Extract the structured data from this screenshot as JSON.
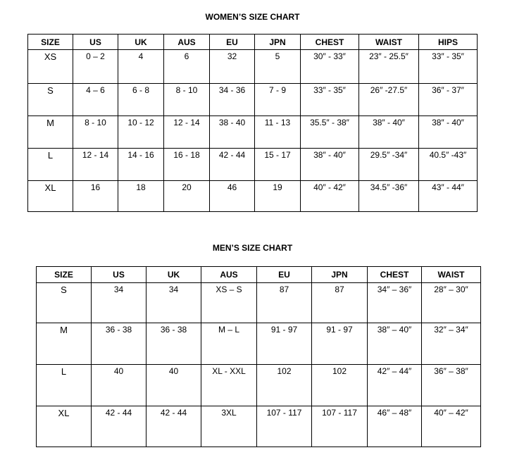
{
  "women": {
    "title": "WOMEN’S SIZE CHART",
    "headers": [
      "SIZE",
      "US",
      "UK",
      "AUS",
      "EU",
      "JPN",
      "CHEST",
      "WAIST",
      "HIPS"
    ],
    "rows": [
      [
        "XS",
        "0 – 2",
        "4",
        "6",
        "32",
        "5",
        "30″ - 33″",
        "23″ - 25.5″",
        "33″ - 35″"
      ],
      [
        "S",
        "4 – 6",
        "6 - 8",
        "8 - 10",
        "34 - 36",
        "7 - 9",
        "33″ - 35″",
        "26″ -27.5″",
        "36″ - 37″"
      ],
      [
        "M",
        "8 - 10",
        "10 - 12",
        "12 - 14",
        "38 - 40",
        "11 - 13",
        "35.5″ - 38″",
        "38″ - 40″",
        "38″ - 40″"
      ],
      [
        "L",
        "12 - 14",
        "14 - 16",
        "16 - 18",
        "42 - 44",
        "15 - 17",
        "38″ - 40″",
        "29.5″ -34″",
        "40.5″ -43″"
      ],
      [
        "XL",
        "16",
        "18",
        "20",
        "46",
        "19",
        "40″ - 42″",
        "34.5″ -36″",
        "43″ - 44″"
      ]
    ]
  },
  "men": {
    "title": "MEN’S SIZE CHART",
    "headers": [
      "SIZE",
      "US",
      "UK",
      "AUS",
      "EU",
      "JPN",
      "CHEST",
      "WAIST"
    ],
    "rows": [
      [
        "S",
        "34",
        "34",
        "XS – S",
        "87",
        "87",
        "34″ – 36″",
        "28″ – 30″"
      ],
      [
        "M",
        "36 - 38",
        "36 - 38",
        "M – L",
        "91 - 97",
        "91 - 97",
        "38″ – 40″",
        "32″ – 34″"
      ],
      [
        "L",
        "40",
        "40",
        "XL - XXL",
        "102",
        "102",
        "42″ – 44″",
        "36″ – 38″"
      ],
      [
        "XL",
        "42 - 44",
        "42 - 44",
        "3XL",
        "107 - 117",
        "107 - 117",
        "46″ – 48″",
        "40″ – 42″"
      ]
    ]
  }
}
